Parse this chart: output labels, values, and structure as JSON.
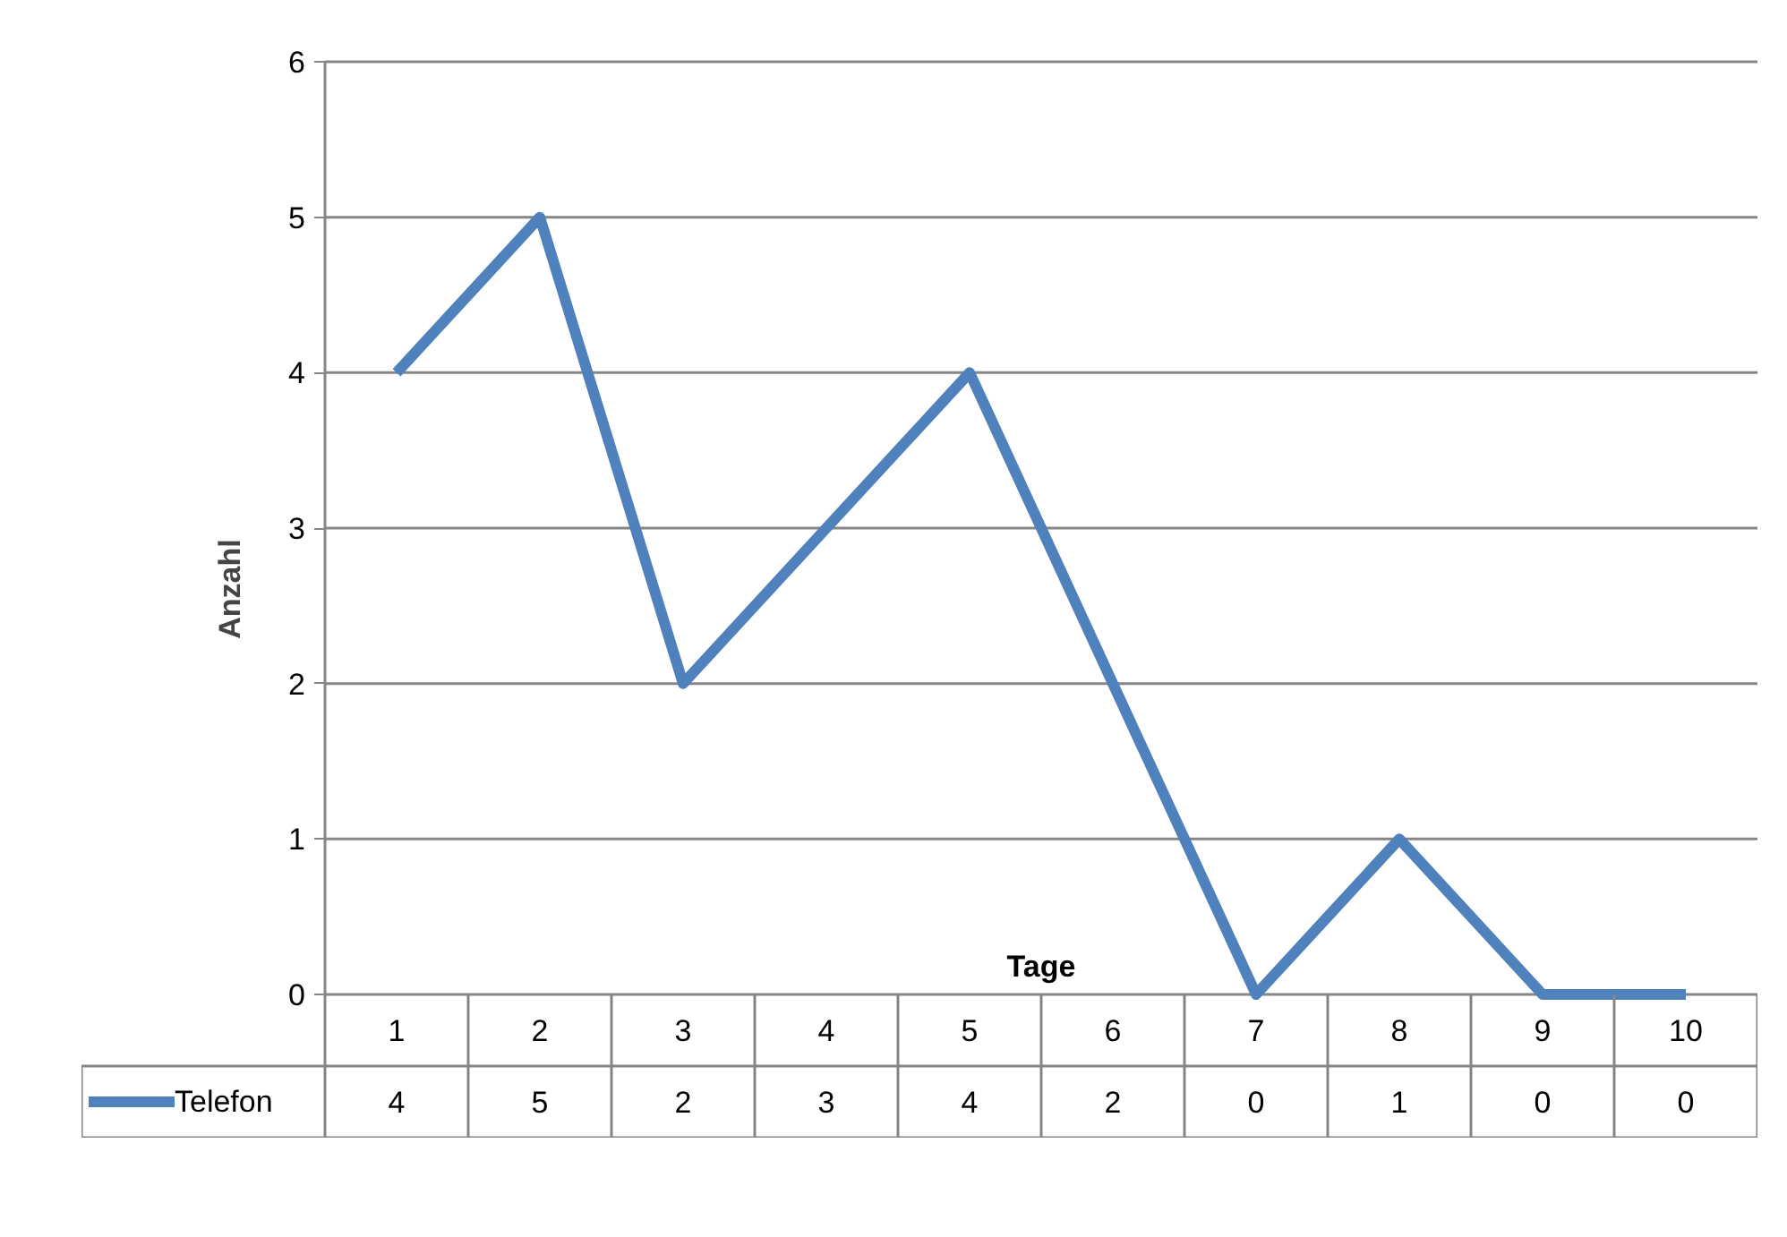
{
  "chart_data": {
    "type": "line",
    "xlabel": "Tage",
    "ylabel": "Anzahl",
    "categories": [
      "1",
      "2",
      "3",
      "4",
      "5",
      "6",
      "7",
      "8",
      "9",
      "10"
    ],
    "series": [
      {
        "name": "Telefon",
        "color": "#4f81bd",
        "values": [
          4,
          5,
          2,
          3,
          4,
          2,
          0,
          1,
          0,
          0
        ]
      }
    ],
    "ylim": [
      0,
      6
    ],
    "yticks": [
      0,
      1,
      2,
      3,
      4,
      5,
      6
    ],
    "grid": "y",
    "legend": "bottom left",
    "data_labels": true,
    "marker": "none",
    "line_style": "solid"
  }
}
